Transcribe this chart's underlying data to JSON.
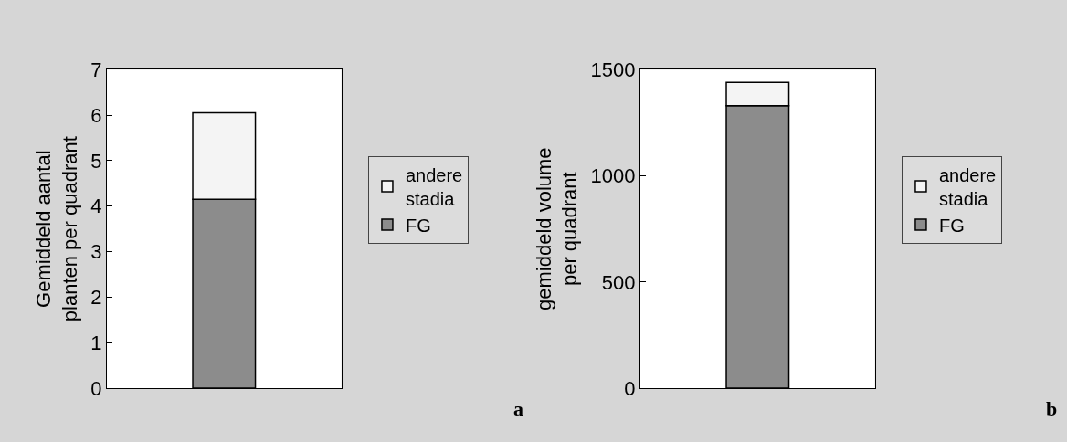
{
  "chart_data": [
    {
      "type": "bar",
      "stacked": true,
      "ylabel": "Gemiddeld aantal planten per quadrant",
      "categories": [
        null
      ],
      "ylim": [
        0,
        7
      ],
      "yticks": [
        0,
        1,
        2,
        3,
        4,
        5,
        6,
        7
      ],
      "legend": "right",
      "grid": false,
      "annotations": [
        "a"
      ],
      "series": [
        {
          "name": "FG",
          "color": "#8c8c8c",
          "values": [
            4.15
          ]
        },
        {
          "name": "andere stadia",
          "color": "#f4f4f4",
          "values": [
            1.9
          ]
        }
      ]
    },
    {
      "type": "bar",
      "stacked": true,
      "ylabel": "gemiddeld volume per quadrant",
      "categories": [
        null
      ],
      "ylim": [
        0,
        1500
      ],
      "yticks": [
        0,
        500,
        1000,
        1500
      ],
      "legend": "right",
      "grid": false,
      "annotations": [
        "b"
      ],
      "series": [
        {
          "name": "FG",
          "color": "#8c8c8c",
          "values": [
            1330
          ]
        },
        {
          "name": "andere stadia",
          "color": "#f4f4f4",
          "values": [
            110
          ]
        }
      ]
    }
  ]
}
